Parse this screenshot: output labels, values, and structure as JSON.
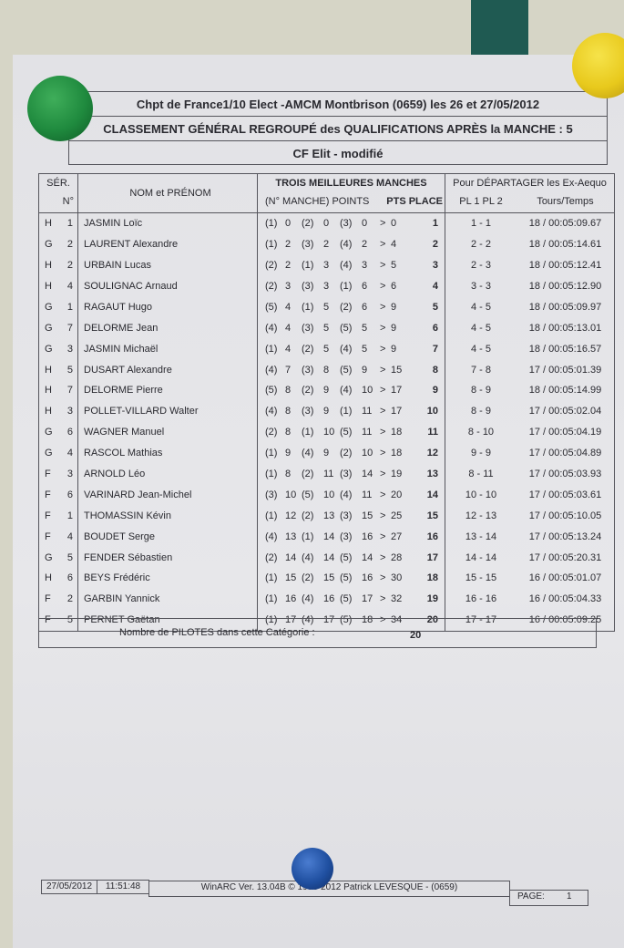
{
  "header": {
    "line1": "Chpt de France1/10 Elect -AMCM Montbrison (0659) les 26 et 27/05/2012",
    "line2": "CLASSEMENT GÉNÉRAL REGROUPÉ des QUALIFICATIONS APRÈS la MANCHE : 5",
    "line3": "CF Elit  -  modifié"
  },
  "columns": {
    "ser": "SÉR.",
    "num": "N°",
    "name": "NOM et PRÉNOM",
    "manches": "TROIS MEILLEURES MANCHES",
    "manche_points": "(N° MANCHE) POINTS",
    "pts_place": "PTS PLACE",
    "departager": "Pour DÉPARTAGER les Ex-Aequo",
    "pl": "PL 1 PL 2",
    "tours": "Tours/Temps"
  },
  "rows": [
    {
      "ser": "H",
      "n": "1",
      "name": "JASMIN Loïc",
      "m": [
        [
          "(1)",
          "0"
        ],
        [
          "(2)",
          "0"
        ],
        [
          "(3)",
          "0"
        ]
      ],
      "pts": "0",
      "place": "1",
      "pl": "1 - 1",
      "tt": "18 / 00:05:09.67"
    },
    {
      "ser": "G",
      "n": "2",
      "name": "LAURENT Alexandre",
      "m": [
        [
          "(1)",
          "2"
        ],
        [
          "(3)",
          "2"
        ],
        [
          "(4)",
          "2"
        ]
      ],
      "pts": "4",
      "place": "2",
      "pl": "2 - 2",
      "tt": "18 / 00:05:14.61"
    },
    {
      "ser": "H",
      "n": "2",
      "name": "URBAIN Lucas",
      "m": [
        [
          "(2)",
          "2"
        ],
        [
          "(1)",
          "3"
        ],
        [
          "(4)",
          "3"
        ]
      ],
      "pts": "5",
      "place": "3",
      "pl": "2 - 3",
      "tt": "18 / 00:05:12.41"
    },
    {
      "ser": "H",
      "n": "4",
      "name": "SOULIGNAC Arnaud",
      "m": [
        [
          "(2)",
          "3"
        ],
        [
          "(3)",
          "3"
        ],
        [
          "(1)",
          "6"
        ]
      ],
      "pts": "6",
      "place": "4",
      "pl": "3 - 3",
      "tt": "18 / 00:05:12.90"
    },
    {
      "ser": "G",
      "n": "1",
      "name": "RAGAUT Hugo",
      "m": [
        [
          "(5)",
          "4"
        ],
        [
          "(1)",
          "5"
        ],
        [
          "(2)",
          "6"
        ]
      ],
      "pts": "9",
      "place": "5",
      "pl": "4 - 5",
      "tt": "18 / 00:05:09.97"
    },
    {
      "ser": "G",
      "n": "7",
      "name": "DELORME Jean",
      "m": [
        [
          "(4)",
          "4"
        ],
        [
          "(3)",
          "5"
        ],
        [
          "(5)",
          "5"
        ]
      ],
      "pts": "9",
      "place": "6",
      "pl": "4 - 5",
      "tt": "18 / 00:05:13.01"
    },
    {
      "ser": "G",
      "n": "3",
      "name": "JASMIN Michaël",
      "m": [
        [
          "(1)",
          "4"
        ],
        [
          "(2)",
          "5"
        ],
        [
          "(4)",
          "5"
        ]
      ],
      "pts": "9",
      "place": "7",
      "pl": "4 - 5",
      "tt": "18 / 00:05:16.57"
    },
    {
      "ser": "H",
      "n": "5",
      "name": "DUSART Alexandre",
      "m": [
        [
          "(4)",
          "7"
        ],
        [
          "(3)",
          "8"
        ],
        [
          "(5)",
          "9"
        ]
      ],
      "pts": "15",
      "place": "8",
      "pl": "7 - 8",
      "tt": "17 / 00:05:01.39"
    },
    {
      "ser": "H",
      "n": "7",
      "name": "DELORME Pierre",
      "m": [
        [
          "(5)",
          "8"
        ],
        [
          "(2)",
          "9"
        ],
        [
          "(4)",
          "10"
        ]
      ],
      "pts": "17",
      "place": "9",
      "pl": "8 - 9",
      "tt": "18 / 00:05:14.99"
    },
    {
      "ser": "H",
      "n": "3",
      "name": "POLLET-VILLARD Walter",
      "m": [
        [
          "(4)",
          "8"
        ],
        [
          "(3)",
          "9"
        ],
        [
          "(1)",
          "11"
        ]
      ],
      "pts": "17",
      "place": "10",
      "pl": "8 - 9",
      "tt": "17 / 00:05:02.04"
    },
    {
      "ser": "G",
      "n": "6",
      "name": "WAGNER Manuel",
      "m": [
        [
          "(2)",
          "8"
        ],
        [
          "(1)",
          "10"
        ],
        [
          "(5)",
          "11"
        ]
      ],
      "pts": "18",
      "place": "11",
      "pl": "8 - 10",
      "tt": "17 / 00:05:04.19"
    },
    {
      "ser": "G",
      "n": "4",
      "name": "RASCOL Mathias",
      "m": [
        [
          "(1)",
          "9"
        ],
        [
          "(4)",
          "9"
        ],
        [
          "(2)",
          "10"
        ]
      ],
      "pts": "18",
      "place": "12",
      "pl": "9 - 9",
      "tt": "17 / 00:05:04.89"
    },
    {
      "ser": "F",
      "n": "3",
      "name": "ARNOLD Léo",
      "m": [
        [
          "(1)",
          "8"
        ],
        [
          "(2)",
          "11"
        ],
        [
          "(3)",
          "14"
        ]
      ],
      "pts": "19",
      "place": "13",
      "pl": "8 - 11",
      "tt": "17 / 00:05:03.93"
    },
    {
      "ser": "F",
      "n": "6",
      "name": "VARINARD Jean-Michel",
      "m": [
        [
          "(3)",
          "10"
        ],
        [
          "(5)",
          "10"
        ],
        [
          "(4)",
          "11"
        ]
      ],
      "pts": "20",
      "place": "14",
      "pl": "10 - 10",
      "tt": "17 / 00:05:03.61"
    },
    {
      "ser": "F",
      "n": "1",
      "name": "THOMASSIN Kévin",
      "m": [
        [
          "(1)",
          "12"
        ],
        [
          "(2)",
          "13"
        ],
        [
          "(3)",
          "15"
        ]
      ],
      "pts": "25",
      "place": "15",
      "pl": "12 - 13",
      "tt": "17 / 00:05:10.05"
    },
    {
      "ser": "F",
      "n": "4",
      "name": "BOUDET Serge",
      "m": [
        [
          "(4)",
          "13"
        ],
        [
          "(1)",
          "14"
        ],
        [
          "(3)",
          "16"
        ]
      ],
      "pts": "27",
      "place": "16",
      "pl": "13 - 14",
      "tt": "17 / 00:05:13.24"
    },
    {
      "ser": "G",
      "n": "5",
      "name": "FENDER Sébastien",
      "m": [
        [
          "(2)",
          "14"
        ],
        [
          "(4)",
          "14"
        ],
        [
          "(5)",
          "14"
        ]
      ],
      "pts": "28",
      "place": "17",
      "pl": "14 - 14",
      "tt": "17 / 00:05:20.31"
    },
    {
      "ser": "H",
      "n": "6",
      "name": "BEYS Frédéric",
      "m": [
        [
          "(1)",
          "15"
        ],
        [
          "(2)",
          "15"
        ],
        [
          "(5)",
          "16"
        ]
      ],
      "pts": "30",
      "place": "18",
      "pl": "15 - 15",
      "tt": "16 / 00:05:01.07"
    },
    {
      "ser": "F",
      "n": "2",
      "name": "GARBIN Yannick",
      "m": [
        [
          "(1)",
          "16"
        ],
        [
          "(4)",
          "16"
        ],
        [
          "(5)",
          "17"
        ]
      ],
      "pts": "32",
      "place": "19",
      "pl": "16 - 16",
      "tt": "16 / 00:05:04.33"
    },
    {
      "ser": "F",
      "n": "5",
      "name": "PERNET Gaëtan",
      "m": [
        [
          "(1)",
          "17"
        ],
        [
          "(4)",
          "17"
        ],
        [
          "(5)",
          "18"
        ]
      ],
      "pts": "34",
      "place": "20",
      "pl": "17 - 17",
      "tt": "16 / 00:05:09.25"
    }
  ],
  "total": {
    "label": "Nombre de PILOTES dans cette Catégorie :",
    "value": "20"
  },
  "footer": {
    "date": "27/05/2012",
    "time": "11:51:48",
    "software": "WinARC Ver. 13.04B © 1993-2012 Patrick LEVESQUE - (0659)",
    "page_label": "PAGE:",
    "page": "1"
  },
  "colors": {
    "wall": "#d6d5c6",
    "tape": "#1f5a52",
    "magnet_green": "#1f8a3e",
    "magnet_yellow": "#e8c91c",
    "magnet_blue": "#1f4fa0"
  }
}
